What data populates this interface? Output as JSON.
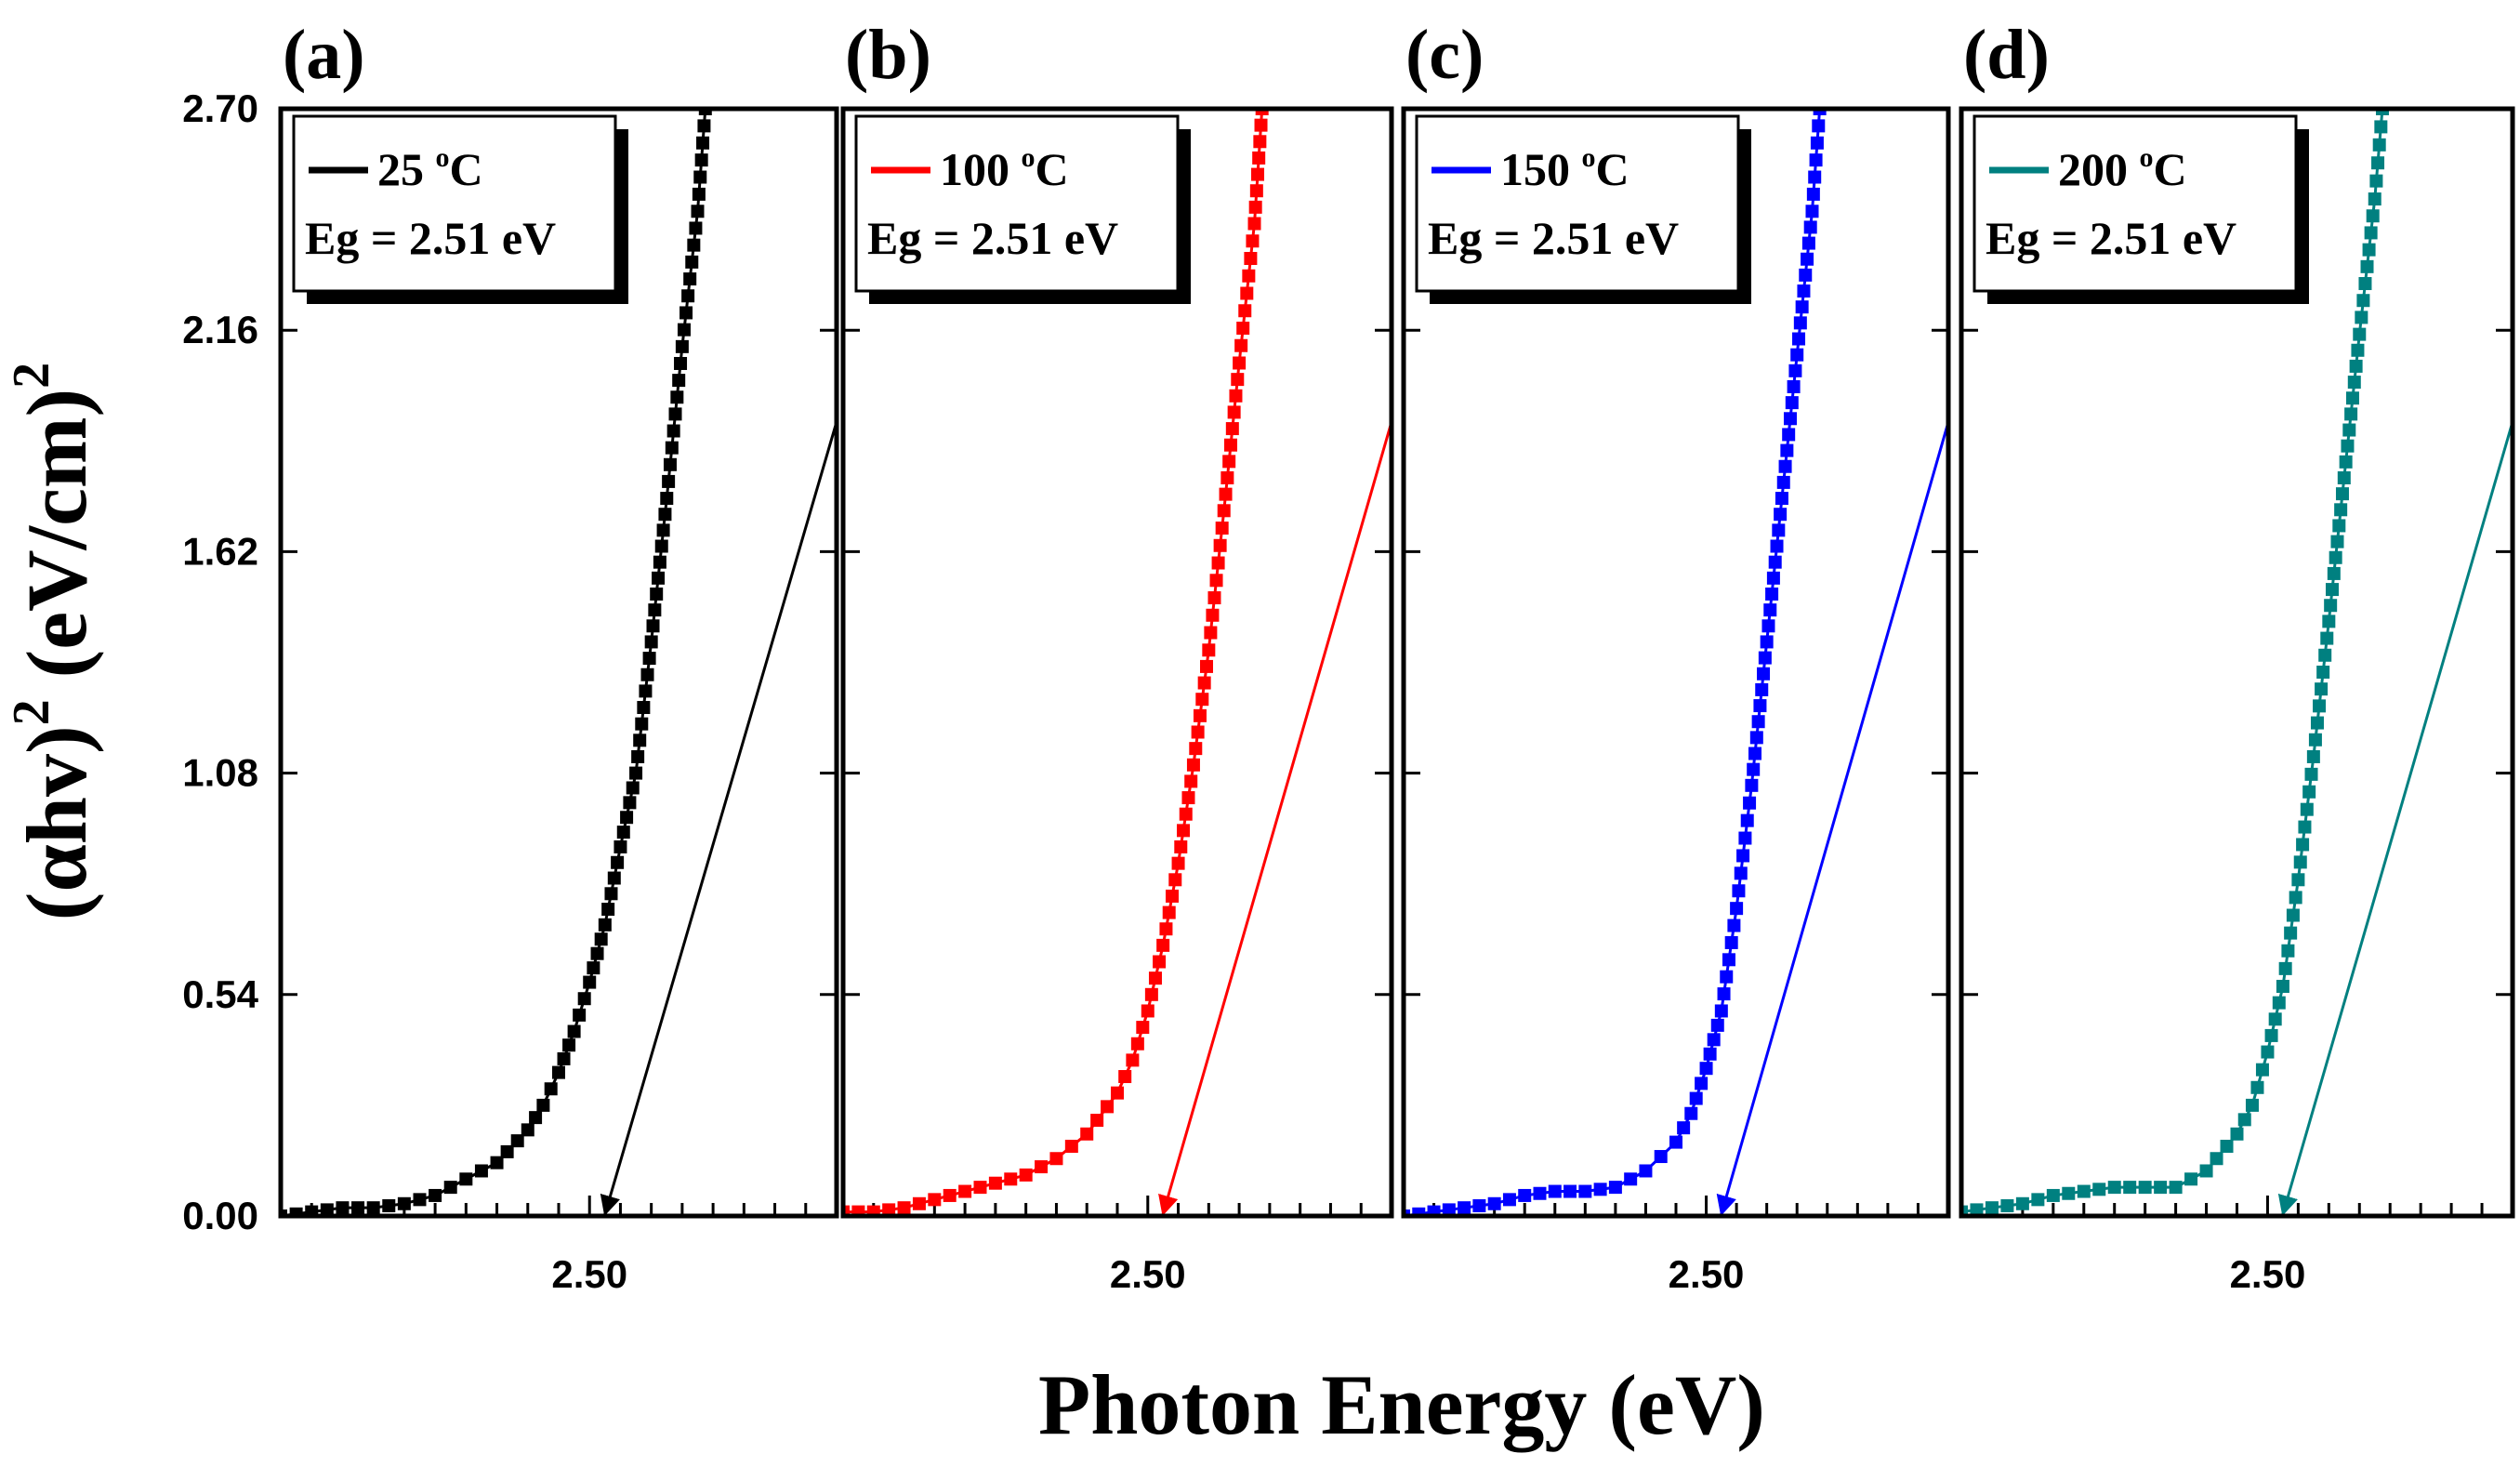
{
  "chart_data": {
    "type": "scatter",
    "ylabel": {
      "open": "(αhv)",
      "exp1": "2",
      "rest": " (eV/cm)",
      "exp2": "2"
    },
    "xlabel": "Photon Energy (eV)",
    "xlim": [
      2.3,
      2.66
    ],
    "xticks": [
      2.5
    ],
    "xtick_labels": [
      "2.50"
    ],
    "ylim": [
      0,
      2.7
    ],
    "yticks": [
      0,
      0.54,
      1.08,
      1.62,
      2.16,
      2.7
    ],
    "ytick_labels": [
      "0.00",
      "0.54",
      "1.08",
      "1.62",
      "2.16",
      "2.70"
    ],
    "panels": [
      {
        "label": "(a)",
        "color": "#000000",
        "legend_value": "25 ",
        "legend_sup": "o",
        "legend_unit": "C",
        "eg_text": "Eg = 2.51 eV",
        "eg": 2.51,
        "fit_slope": 12.9,
        "series": [
          [
            2.3,
            0.0
          ],
          [
            2.32,
            0.01
          ],
          [
            2.34,
            0.02
          ],
          [
            2.36,
            0.02
          ],
          [
            2.38,
            0.03
          ],
          [
            2.4,
            0.05
          ],
          [
            2.42,
            0.09
          ],
          [
            2.44,
            0.13
          ],
          [
            2.46,
            0.21
          ],
          [
            2.47,
            0.27
          ],
          [
            2.48,
            0.35
          ],
          [
            2.49,
            0.45
          ],
          [
            2.5,
            0.57
          ],
          [
            2.51,
            0.71
          ],
          [
            2.52,
            0.9
          ],
          [
            2.53,
            1.08
          ],
          [
            2.54,
            1.4
          ],
          [
            2.55,
            1.75
          ],
          [
            2.56,
            2.12
          ],
          [
            2.57,
            2.45
          ],
          [
            2.575,
            2.7
          ]
        ]
      },
      {
        "label": "(b)",
        "color": "#ff0000",
        "legend_value": "100 ",
        "legend_sup": "o",
        "legend_unit": "C",
        "eg_text": "Eg = 2.51 eV",
        "eg": 2.51,
        "fit_slope": 12.9,
        "series": [
          [
            2.3,
            0.01
          ],
          [
            2.32,
            0.01
          ],
          [
            2.34,
            0.02
          ],
          [
            2.36,
            0.04
          ],
          [
            2.38,
            0.06
          ],
          [
            2.4,
            0.08
          ],
          [
            2.42,
            0.1
          ],
          [
            2.44,
            0.14
          ],
          [
            2.46,
            0.2
          ],
          [
            2.48,
            0.3
          ],
          [
            2.49,
            0.38
          ],
          [
            2.5,
            0.5
          ],
          [
            2.51,
            0.66
          ],
          [
            2.52,
            0.86
          ],
          [
            2.53,
            1.1
          ],
          [
            2.54,
            1.38
          ],
          [
            2.55,
            1.72
          ],
          [
            2.56,
            2.08
          ],
          [
            2.57,
            2.42
          ],
          [
            2.575,
            2.7
          ]
        ]
      },
      {
        "label": "(c)",
        "color": "#0000ff",
        "legend_value": "150 ",
        "legend_sup": "o",
        "legend_unit": "C",
        "eg_text": "Eg = 2.51 eV",
        "eg": 2.51,
        "fit_slope": 12.9,
        "series": [
          [
            2.3,
            0.0
          ],
          [
            2.32,
            0.01
          ],
          [
            2.34,
            0.02
          ],
          [
            2.36,
            0.03
          ],
          [
            2.38,
            0.05
          ],
          [
            2.4,
            0.06
          ],
          [
            2.42,
            0.06
          ],
          [
            2.44,
            0.07
          ],
          [
            2.46,
            0.11
          ],
          [
            2.48,
            0.18
          ],
          [
            2.49,
            0.25
          ],
          [
            2.5,
            0.36
          ],
          [
            2.51,
            0.5
          ],
          [
            2.52,
            0.75
          ],
          [
            2.53,
            1.05
          ],
          [
            2.54,
            1.4
          ],
          [
            2.55,
            1.75
          ],
          [
            2.56,
            2.1
          ],
          [
            2.57,
            2.45
          ],
          [
            2.575,
            2.7
          ]
        ]
      },
      {
        "label": "(d)",
        "color": "#008080",
        "legend_value": "200 ",
        "legend_sup": "o",
        "legend_unit": "C",
        "eg_text": "Eg = 2.51 eV",
        "eg": 2.51,
        "fit_slope": 12.9,
        "series": [
          [
            2.3,
            0.01
          ],
          [
            2.32,
            0.02
          ],
          [
            2.34,
            0.03
          ],
          [
            2.36,
            0.05
          ],
          [
            2.38,
            0.06
          ],
          [
            2.4,
            0.07
          ],
          [
            2.42,
            0.07
          ],
          [
            2.44,
            0.07
          ],
          [
            2.46,
            0.11
          ],
          [
            2.48,
            0.2
          ],
          [
            2.49,
            0.27
          ],
          [
            2.5,
            0.4
          ],
          [
            2.51,
            0.56
          ],
          [
            2.52,
            0.82
          ],
          [
            2.53,
            1.12
          ],
          [
            2.54,
            1.45
          ],
          [
            2.55,
            1.8
          ],
          [
            2.56,
            2.15
          ],
          [
            2.57,
            2.48
          ],
          [
            2.575,
            2.7
          ]
        ]
      }
    ]
  }
}
